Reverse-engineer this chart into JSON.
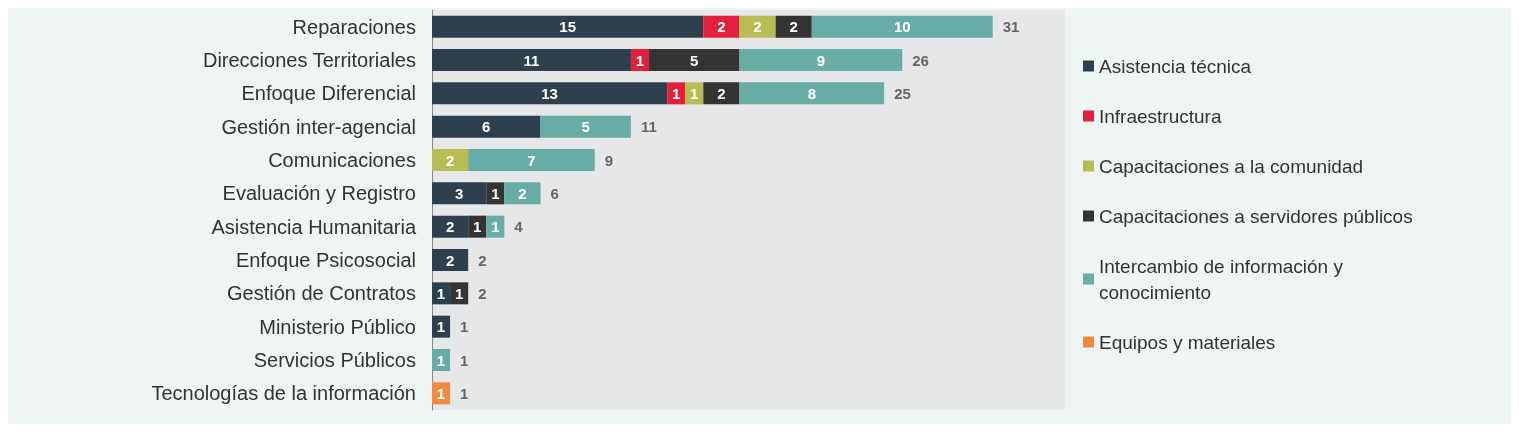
{
  "chart_data": {
    "type": "bar",
    "orientation": "horizontal",
    "stacked": true,
    "data_labels": true,
    "legend": "right",
    "tick_labels": "y",
    "xlim": [
      0,
      35
    ],
    "categories": [
      "Reparaciones",
      "Direcciones Territoriales",
      "Enfoque Diferencial",
      "Gestión inter-agencial",
      "Comunicaciones",
      "Evaluación y Registro",
      "Asistencia Humanitaria",
      "Enfoque Psicosocial",
      "Gestión de Contratos",
      "Ministerio Público",
      "Servicios Públicos",
      "Tecnologías de la información"
    ],
    "series": [
      {
        "name": "Asistencia técnica",
        "color": "#2e4050",
        "values": [
          15,
          11,
          13,
          6,
          null,
          3,
          2,
          2,
          1,
          1,
          null,
          null
        ]
      },
      {
        "name": "Infraestructura",
        "color": "#e2203c",
        "values": [
          2,
          1,
          1,
          null,
          null,
          null,
          null,
          null,
          null,
          null,
          null,
          null
        ]
      },
      {
        "name": "Capacitaciones a la comunidad",
        "color": "#b7bd52",
        "values": [
          2,
          null,
          1,
          null,
          2,
          null,
          null,
          null,
          null,
          null,
          null,
          null
        ]
      },
      {
        "name": "Capacitaciones a servidores públicos",
        "color": "#343434",
        "values": [
          2,
          5,
          2,
          null,
          null,
          1,
          1,
          null,
          1,
          null,
          null,
          null
        ]
      },
      {
        "name": "Intercambio de información y conocimiento",
        "color": "#68aca6",
        "values": [
          10,
          9,
          8,
          5,
          7,
          2,
          1,
          null,
          null,
          null,
          1,
          null
        ]
      },
      {
        "name": "Equipos y materiales",
        "color": "#ef8a3e",
        "values": [
          null,
          null,
          null,
          null,
          null,
          null,
          null,
          null,
          null,
          null,
          null,
          1
        ]
      }
    ],
    "totals": [
      "31",
      "26",
      "25",
      "11",
      "9",
      "6",
      "4",
      "2",
      "2",
      "1",
      "1",
      "1"
    ]
  }
}
